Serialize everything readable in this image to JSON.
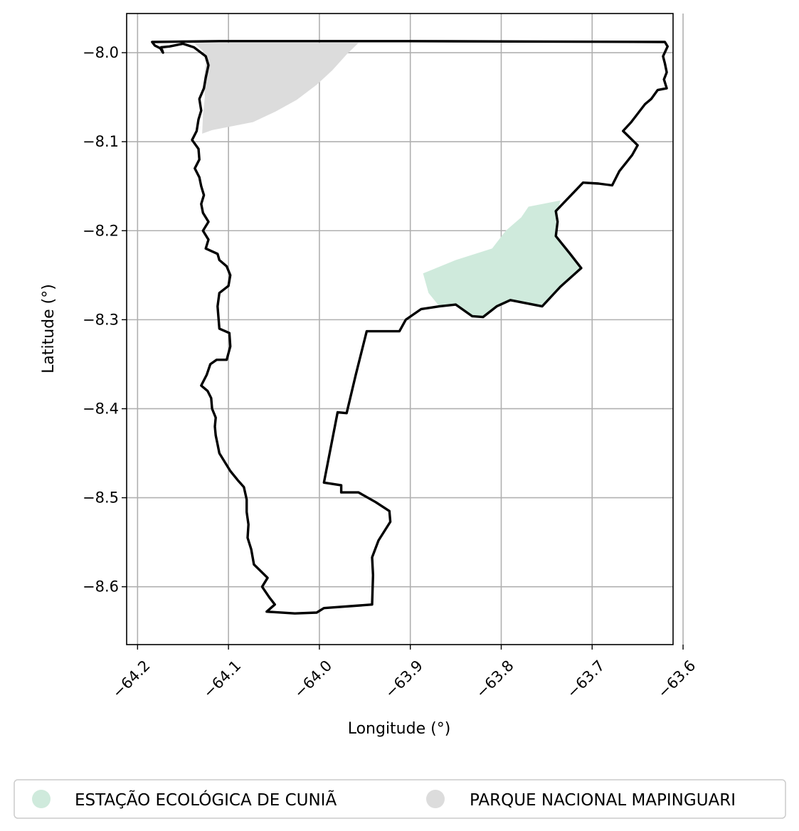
{
  "map": {
    "xlabel": "Longitude (°)",
    "ylabel": "Latitude (°)",
    "xlim": [
      -64.212,
      -63.611
    ],
    "ylim": [
      -8.665,
      -7.956
    ],
    "grid": true,
    "x_ticks": [
      {
        "value": -64.2,
        "label": "−64.2"
      },
      {
        "value": -64.1,
        "label": "−64.1"
      },
      {
        "value": -64.0,
        "label": "−64.0"
      },
      {
        "value": -63.9,
        "label": "−63.9"
      },
      {
        "value": -63.8,
        "label": "−63.8"
      },
      {
        "value": -63.7,
        "label": "−63.7"
      },
      {
        "value": -63.6,
        "label": "−63.6"
      }
    ],
    "y_ticks": [
      {
        "value": -8.0,
        "label": "−8.0"
      },
      {
        "value": -8.1,
        "label": "−8.1"
      },
      {
        "value": -8.2,
        "label": "−8.2"
      },
      {
        "value": -8.3,
        "label": "−8.3"
      },
      {
        "value": -8.4,
        "label": "−8.4"
      },
      {
        "value": -8.5,
        "label": "−8.5"
      },
      {
        "value": -8.6,
        "label": "−8.6"
      }
    ],
    "areas": [
      {
        "name": "PARQUE NACIONAL MAPINGUARI",
        "color": "#dcdcdc",
        "polygon": [
          [
            -64.138,
            -7.989
          ],
          [
            -63.957,
            -7.989
          ],
          [
            -63.97,
            -8.002
          ],
          [
            -63.986,
            -8.02
          ],
          [
            -64.003,
            -8.036
          ],
          [
            -64.025,
            -8.053
          ],
          [
            -64.048,
            -8.066
          ],
          [
            -64.073,
            -8.078
          ],
          [
            -64.098,
            -8.083
          ],
          [
            -64.118,
            -8.087
          ],
          [
            -64.129,
            -8.091
          ],
          [
            -64.128,
            -8.07
          ],
          [
            -64.126,
            -8.05
          ],
          [
            -64.127,
            -8.03
          ],
          [
            -64.125,
            -8.012
          ],
          [
            -64.128,
            -7.998
          ]
        ]
      },
      {
        "name": "ESTAÇÃO ECOLÓGICA DE CUNIÃ",
        "color": "#cfeadc",
        "polygon": [
          [
            -63.886,
            -8.248
          ],
          [
            -63.85,
            -8.233
          ],
          [
            -63.81,
            -8.22
          ],
          [
            -63.795,
            -8.2
          ],
          [
            -63.778,
            -8.185
          ],
          [
            -63.77,
            -8.173
          ],
          [
            -63.755,
            -8.17
          ],
          [
            -63.735,
            -8.166
          ],
          [
            -63.74,
            -8.187
          ],
          [
            -63.738,
            -8.207
          ],
          [
            -63.725,
            -8.225
          ],
          [
            -63.712,
            -8.242
          ],
          [
            -63.735,
            -8.263
          ],
          [
            -63.755,
            -8.285
          ],
          [
            -63.79,
            -8.278
          ],
          [
            -63.805,
            -8.285
          ],
          [
            -63.82,
            -8.297
          ],
          [
            -63.832,
            -8.296
          ],
          [
            -63.85,
            -8.283
          ],
          [
            -63.868,
            -8.285
          ],
          [
            -63.88,
            -8.27
          ]
        ]
      }
    ],
    "boundary": [
      [
        -64.184,
        -7.988
      ],
      [
        -64.11,
        -7.987
      ],
      [
        -63.9,
        -7.987
      ],
      [
        -63.62,
        -7.988
      ],
      [
        -63.617,
        -7.993
      ],
      [
        -63.622,
        -8.004
      ],
      [
        -63.62,
        -8.012
      ],
      [
        -63.618,
        -8.022
      ],
      [
        -63.621,
        -8.03
      ],
      [
        -63.618,
        -8.04
      ],
      [
        -63.628,
        -8.042
      ],
      [
        -63.635,
        -8.052
      ],
      [
        -63.642,
        -8.058
      ],
      [
        -63.648,
        -8.066
      ],
      [
        -63.657,
        -8.078
      ],
      [
        -63.666,
        -8.088
      ],
      [
        -63.66,
        -8.094
      ],
      [
        -63.65,
        -8.104
      ],
      [
        -63.656,
        -8.115
      ],
      [
        -63.663,
        -8.124
      ],
      [
        -63.67,
        -8.133
      ],
      [
        -63.678,
        -8.149
      ],
      [
        -63.693,
        -8.147
      ],
      [
        -63.71,
        -8.146
      ],
      [
        -63.74,
        -8.178
      ],
      [
        -63.738,
        -8.19
      ],
      [
        -63.74,
        -8.206
      ],
      [
        -63.725,
        -8.225
      ],
      [
        -63.712,
        -8.242
      ],
      [
        -63.735,
        -8.263
      ],
      [
        -63.755,
        -8.285
      ],
      [
        -63.79,
        -8.278
      ],
      [
        -63.805,
        -8.285
      ],
      [
        -63.82,
        -8.297
      ],
      [
        -63.832,
        -8.296
      ],
      [
        -63.85,
        -8.283
      ],
      [
        -63.868,
        -8.285
      ],
      [
        -63.888,
        -8.288
      ],
      [
        -63.905,
        -8.3
      ],
      [
        -63.912,
        -8.313
      ],
      [
        -63.948,
        -8.313
      ],
      [
        -63.96,
        -8.362
      ],
      [
        -63.97,
        -8.405
      ],
      [
        -63.98,
        -8.404
      ],
      [
        -63.995,
        -8.483
      ],
      [
        -63.976,
        -8.486
      ],
      [
        -63.976,
        -8.494
      ],
      [
        -63.957,
        -8.494
      ],
      [
        -63.938,
        -8.505
      ],
      [
        -63.923,
        -8.515
      ],
      [
        -63.922,
        -8.527
      ],
      [
        -63.935,
        -8.548
      ],
      [
        -63.942,
        -8.567
      ],
      [
        -63.941,
        -8.587
      ],
      [
        -63.942,
        -8.62
      ],
      [
        -63.995,
        -8.624
      ],
      [
        -64.003,
        -8.629
      ],
      [
        -64.027,
        -8.63
      ],
      [
        -64.058,
        -8.628
      ],
      [
        -64.049,
        -8.62
      ],
      [
        -64.055,
        -8.612
      ],
      [
        -64.063,
        -8.6
      ],
      [
        -64.057,
        -8.59
      ],
      [
        -64.072,
        -8.575
      ],
      [
        -64.075,
        -8.558
      ],
      [
        -64.079,
        -8.545
      ],
      [
        -64.078,
        -8.53
      ],
      [
        -64.08,
        -8.516
      ],
      [
        -64.08,
        -8.502
      ],
      [
        -64.083,
        -8.488
      ],
      [
        -64.09,
        -8.48
      ],
      [
        -64.098,
        -8.47
      ],
      [
        -64.104,
        -8.46
      ],
      [
        -64.11,
        -8.45
      ],
      [
        -64.112,
        -8.44
      ],
      [
        -64.114,
        -8.43
      ],
      [
        -64.115,
        -8.42
      ],
      [
        -64.114,
        -8.41
      ],
      [
        -64.118,
        -8.4
      ],
      [
        -64.119,
        -8.388
      ],
      [
        -64.123,
        -8.38
      ],
      [
        -64.13,
        -8.374
      ],
      [
        -64.124,
        -8.362
      ],
      [
        -64.12,
        -8.35
      ],
      [
        -64.113,
        -8.345
      ],
      [
        -64.102,
        -8.345
      ],
      [
        -64.098,
        -8.33
      ],
      [
        -64.099,
        -8.315
      ],
      [
        -64.11,
        -8.31
      ],
      [
        -64.111,
        -8.298
      ],
      [
        -64.112,
        -8.285
      ],
      [
        -64.11,
        -8.27
      ],
      [
        -64.1,
        -8.262
      ],
      [
        -64.098,
        -8.25
      ],
      [
        -64.102,
        -8.24
      ],
      [
        -64.11,
        -8.233
      ],
      [
        -64.112,
        -8.226
      ],
      [
        -64.125,
        -8.22
      ],
      [
        -64.122,
        -8.21
      ],
      [
        -64.128,
        -8.2
      ],
      [
        -64.122,
        -8.19
      ],
      [
        -64.128,
        -8.18
      ],
      [
        -64.13,
        -8.17
      ],
      [
        -64.127,
        -8.16
      ],
      [
        -64.13,
        -8.15
      ],
      [
        -64.132,
        -8.14
      ],
      [
        -64.137,
        -8.13
      ],
      [
        -64.132,
        -8.12
      ],
      [
        -64.133,
        -8.108
      ],
      [
        -64.14,
        -8.098
      ],
      [
        -64.135,
        -8.088
      ],
      [
        -64.133,
        -8.075
      ],
      [
        -64.13,
        -8.065
      ],
      [
        -64.132,
        -8.052
      ],
      [
        -64.127,
        -8.04
      ],
      [
        -64.125,
        -8.028
      ],
      [
        -64.122,
        -8.014
      ],
      [
        -64.125,
        -8.004
      ],
      [
        -64.138,
        -7.994
      ],
      [
        -64.15,
        -7.99
      ],
      [
        -64.165,
        -7.993
      ],
      [
        -64.174,
        -7.994
      ],
      [
        -64.172,
        -8.0
      ],
      [
        -64.175,
        -7.995
      ],
      [
        -64.181,
        -7.992
      ],
      [
        -64.184,
        -7.988
      ]
    ]
  },
  "legend": {
    "items": [
      {
        "label": "ESTAÇÃO ECOLÓGICA DE CUNIÃ",
        "color": "#cfeadc"
      },
      {
        "label": "PARQUE NACIONAL MAPINGUARI",
        "color": "#dcdcdc"
      }
    ]
  }
}
